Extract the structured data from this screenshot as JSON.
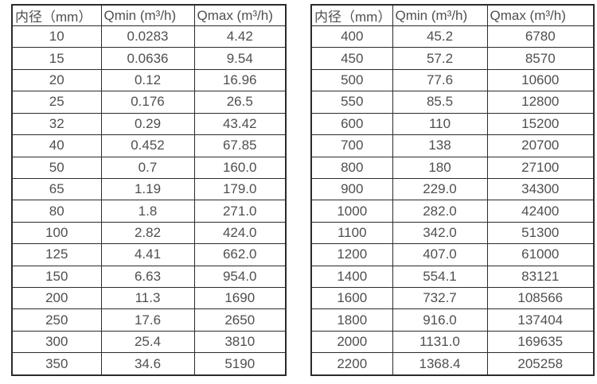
{
  "page": {
    "background_color": "#ffffff",
    "text_color": "#4f4f4f",
    "border_color": "#2b2b2b"
  },
  "chart_data": [
    {
      "type": "table",
      "name": "flow-rate-table-small-diameters",
      "headers": [
        "内径（mm）",
        "Qmin (m³/h)",
        "Qmax (m³/h)"
      ],
      "rows": [
        [
          "10",
          "0.0283",
          "4.42"
        ],
        [
          "15",
          "0.0636",
          "9.54"
        ],
        [
          "20",
          "0.12",
          "16.96"
        ],
        [
          "25",
          "0.176",
          "26.5"
        ],
        [
          "32",
          "0.29",
          "43.42"
        ],
        [
          "40",
          "0.452",
          "67.85"
        ],
        [
          "50",
          "0.7",
          "160.0"
        ],
        [
          "65",
          "1.19",
          "179.0"
        ],
        [
          "80",
          "1.8",
          "271.0"
        ],
        [
          "100",
          "2.82",
          "424.0"
        ],
        [
          "125",
          "4.41",
          "662.0"
        ],
        [
          "150",
          "6.63",
          "954.0"
        ],
        [
          "200",
          "11.3",
          "1690"
        ],
        [
          "250",
          "17.6",
          "2650"
        ],
        [
          "300",
          "25.4",
          "3810"
        ],
        [
          "350",
          "34.6",
          "5190"
        ]
      ]
    },
    {
      "type": "table",
      "name": "flow-rate-table-large-diameters",
      "headers": [
        "内径（mm）",
        "Qmin (m³/h)",
        "Qmax (m³/h)"
      ],
      "rows": [
        [
          "400",
          "45.2",
          "6780"
        ],
        [
          "450",
          "57.2",
          "8570"
        ],
        [
          "500",
          "77.6",
          "10600"
        ],
        [
          "550",
          "85.5",
          "12800"
        ],
        [
          "600",
          "110",
          "15200"
        ],
        [
          "700",
          "138",
          "20700"
        ],
        [
          "800",
          "180",
          "27100"
        ],
        [
          "900",
          "229.0",
          "34300"
        ],
        [
          "1000",
          "282.0",
          "42400"
        ],
        [
          "1100",
          "342.0",
          "51300"
        ],
        [
          "1200",
          "407.0",
          "61000"
        ],
        [
          "1400",
          "554.1",
          "83121"
        ],
        [
          "1600",
          "732.7",
          "108566"
        ],
        [
          "1800",
          "916.0",
          "137404"
        ],
        [
          "2000",
          "1131.0",
          "169635"
        ],
        [
          "2200",
          "1368.4",
          "205258"
        ]
      ]
    }
  ]
}
